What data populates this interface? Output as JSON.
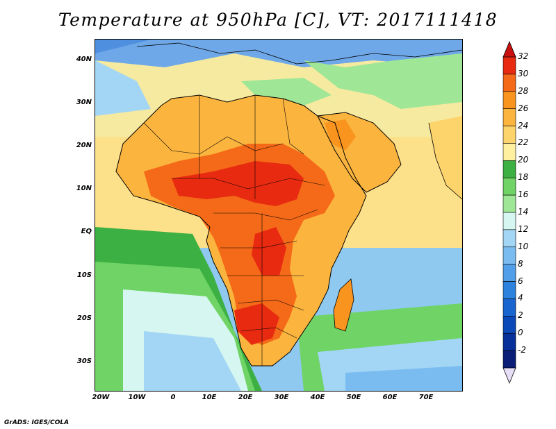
{
  "title": "Temperature at 950hPa [C], VT: 2017111418",
  "credit": "GrADS: IGES/COLA",
  "map": {
    "lat_ticks": [
      "40N",
      "30N",
      "20N",
      "10N",
      "EQ",
      "10S",
      "20S",
      "30S"
    ],
    "lon_ticks": [
      "20W",
      "10W",
      "0",
      "10E",
      "20E",
      "30E",
      "40E",
      "50E",
      "60E",
      "70E"
    ],
    "region": "Africa, Arabian Peninsula, western Indian Ocean"
  },
  "colorbar": {
    "labels": [
      "32",
      "30",
      "28",
      "26",
      "24",
      "22",
      "20",
      "18",
      "16",
      "14",
      "12",
      "10",
      "8",
      "6",
      "4",
      "2",
      "0",
      "-2"
    ],
    "colors": [
      "#e82a10",
      "#f56a18",
      "#f9941f",
      "#fbb43e",
      "#fdd36b",
      "#fff0a0",
      "#3cb043",
      "#6fd365",
      "#9fe696",
      "#d6f6f2",
      "#a3d6f4",
      "#7bbcf0",
      "#509fe8",
      "#2d82dd",
      "#1865cf",
      "#0b49b8",
      "#07309a",
      "#0a1e78"
    ],
    "top_arrow_color": "#c81010",
    "bottom_arrow_color": "#e6ddf6"
  }
}
